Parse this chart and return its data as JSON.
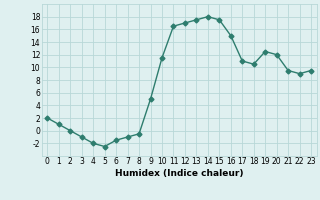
{
  "x": [
    0,
    1,
    2,
    3,
    4,
    5,
    6,
    7,
    8,
    9,
    10,
    11,
    12,
    13,
    14,
    15,
    16,
    17,
    18,
    19,
    20,
    21,
    22,
    23
  ],
  "y": [
    2,
    1,
    0,
    -1,
    -2,
    -2.5,
    -1.5,
    -1,
    -0.5,
    5,
    11.5,
    16.5,
    17,
    17.5,
    18,
    17.5,
    15,
    11,
    10.5,
    12.5,
    12,
    9.5,
    9,
    9.5
  ],
  "line_color": "#2e7d6e",
  "marker_color": "#2e7d6e",
  "bg_color": "#dff0f0",
  "grid_color": "#b8d8d8",
  "xlabel": "Humidex (Indice chaleur)",
  "ylim": [
    -4,
    20
  ],
  "xlim": [
    -0.5,
    23.5
  ],
  "yticks": [
    -2,
    0,
    2,
    4,
    6,
    8,
    10,
    12,
    14,
    16,
    18
  ],
  "xticks": [
    0,
    1,
    2,
    3,
    4,
    5,
    6,
    7,
    8,
    9,
    10,
    11,
    12,
    13,
    14,
    15,
    16,
    17,
    18,
    19,
    20,
    21,
    22,
    23
  ],
  "xlabel_fontsize": 6.5,
  "tick_fontsize": 5.5,
  "line_width": 1.0,
  "marker_size": 2.5
}
